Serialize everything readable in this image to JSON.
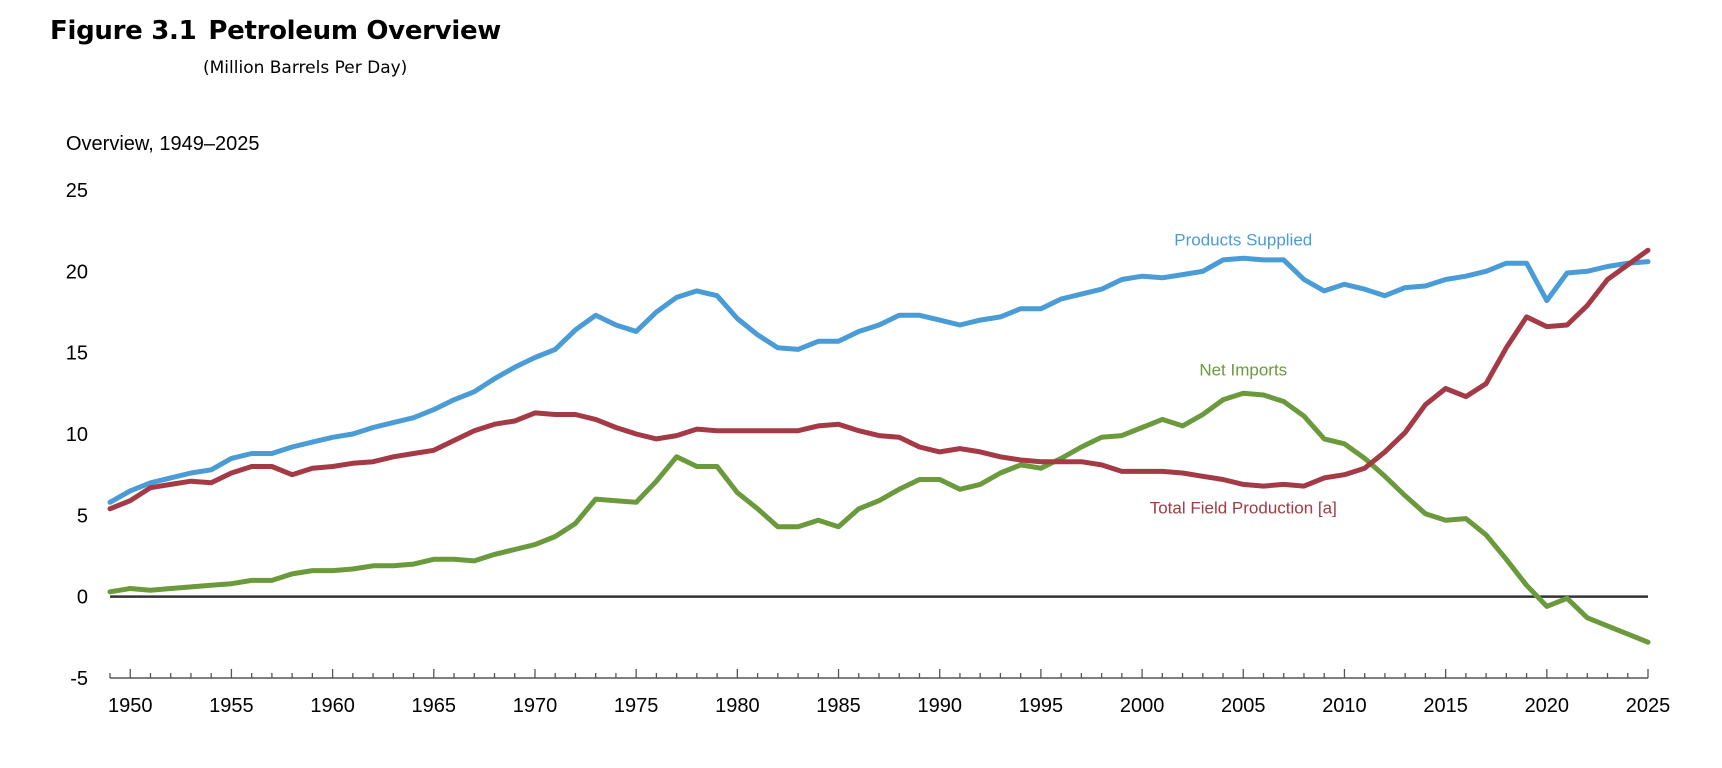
{
  "figure": {
    "number": "Figure 3.1",
    "title": "Petroleum Overview",
    "subtitle": "(Million Barrels Per Day)"
  },
  "chart_data": {
    "type": "line",
    "title": "Overview, 1949–2025",
    "xlabel": "",
    "ylabel": "",
    "xlim": [
      1949,
      2025
    ],
    "ylim": [
      -5,
      25
    ],
    "y_ticks": [
      -5,
      0,
      5,
      10,
      15,
      20,
      25
    ],
    "x_ticks": [
      1950,
      1955,
      1960,
      1965,
      1970,
      1975,
      1980,
      1985,
      1990,
      1995,
      2000,
      2005,
      2010,
      2015,
      2020,
      2025
    ],
    "grid": false,
    "zero_line": true,
    "x": [
      1949,
      1950,
      1951,
      1952,
      1953,
      1954,
      1955,
      1956,
      1957,
      1958,
      1959,
      1960,
      1961,
      1962,
      1963,
      1964,
      1965,
      1966,
      1967,
      1968,
      1969,
      1970,
      1971,
      1972,
      1973,
      1974,
      1975,
      1976,
      1977,
      1978,
      1979,
      1980,
      1981,
      1982,
      1983,
      1984,
      1985,
      1986,
      1987,
      1988,
      1989,
      1990,
      1991,
      1992,
      1993,
      1994,
      1995,
      1996,
      1997,
      1998,
      1999,
      2000,
      2001,
      2002,
      2003,
      2004,
      2005,
      2006,
      2007,
      2008,
      2009,
      2010,
      2011,
      2012,
      2013,
      2014,
      2015,
      2016,
      2017,
      2018,
      2019,
      2020,
      2021,
      2022,
      2023,
      2024,
      2025
    ],
    "series": [
      {
        "name": "Products Supplied",
        "color": "#4a9cd6",
        "values": [
          5.8,
          6.5,
          7.0,
          7.3,
          7.6,
          7.8,
          8.5,
          8.8,
          8.8,
          9.2,
          9.5,
          9.8,
          10.0,
          10.4,
          10.7,
          11.0,
          11.5,
          12.1,
          12.6,
          13.4,
          14.1,
          14.7,
          15.2,
          16.4,
          17.3,
          16.7,
          16.3,
          17.5,
          18.4,
          18.8,
          18.5,
          17.1,
          16.1,
          15.3,
          15.2,
          15.7,
          15.7,
          16.3,
          16.7,
          17.3,
          17.3,
          17.0,
          16.7,
          17.0,
          17.2,
          17.7,
          17.7,
          18.3,
          18.6,
          18.9,
          19.5,
          19.7,
          19.6,
          19.8,
          20.0,
          20.7,
          20.8,
          20.7,
          20.7,
          19.5,
          18.8,
          19.2,
          18.9,
          18.5,
          19.0,
          19.1,
          19.5,
          19.7,
          20.0,
          20.5,
          20.5,
          18.2,
          19.9,
          20.0,
          20.3,
          20.5,
          20.6
        ]
      },
      {
        "name": "Net Imports",
        "color": "#6a9a3c",
        "values": [
          0.3,
          0.5,
          0.4,
          0.5,
          0.6,
          0.7,
          0.8,
          1.0,
          1.0,
          1.4,
          1.6,
          1.6,
          1.7,
          1.9,
          1.9,
          2.0,
          2.3,
          2.3,
          2.2,
          2.6,
          2.9,
          3.2,
          3.7,
          4.5,
          6.0,
          5.9,
          5.8,
          7.1,
          8.6,
          8.0,
          8.0,
          6.4,
          5.4,
          4.3,
          4.3,
          4.7,
          4.3,
          5.4,
          5.9,
          6.6,
          7.2,
          7.2,
          6.6,
          6.9,
          7.6,
          8.1,
          7.9,
          8.5,
          9.2,
          9.8,
          9.9,
          10.4,
          10.9,
          10.5,
          11.2,
          12.1,
          12.5,
          12.4,
          12.0,
          11.1,
          9.7,
          9.4,
          8.5,
          7.4,
          6.2,
          5.1,
          4.7,
          4.8,
          3.8,
          2.3,
          0.7,
          -0.6,
          -0.1,
          -1.3,
          -1.8,
          -2.3,
          -2.8
        ]
      },
      {
        "name": "Total Field Production [a]",
        "color": "#a33a45",
        "values": [
          5.4,
          5.9,
          6.7,
          6.9,
          7.1,
          7.0,
          7.6,
          8.0,
          8.0,
          7.5,
          7.9,
          8.0,
          8.2,
          8.3,
          8.6,
          8.8,
          9.0,
          9.6,
          10.2,
          10.6,
          10.8,
          11.3,
          11.2,
          11.2,
          10.9,
          10.4,
          10.0,
          9.7,
          9.9,
          10.3,
          10.2,
          10.2,
          10.2,
          10.2,
          10.2,
          10.5,
          10.6,
          10.2,
          9.9,
          9.8,
          9.2,
          8.9,
          9.1,
          8.9,
          8.6,
          8.4,
          8.3,
          8.3,
          8.3,
          8.1,
          7.7,
          7.7,
          7.7,
          7.6,
          7.4,
          7.2,
          6.9,
          6.8,
          6.9,
          6.8,
          7.3,
          7.5,
          7.9,
          8.9,
          10.1,
          11.8,
          12.8,
          12.3,
          13.1,
          15.3,
          17.2,
          16.6,
          16.7,
          17.9,
          19.5,
          20.4,
          21.3
        ]
      }
    ],
    "series_labels": [
      {
        "text": "Products Supplied",
        "at_x": 2005,
        "at_y": 21.6
      },
      {
        "text": "Net Imports",
        "at_x": 2005,
        "at_y": 13.6
      },
      {
        "text": "Total Field Production [a]",
        "at_x": 2005,
        "at_y": 5.1
      }
    ]
  }
}
